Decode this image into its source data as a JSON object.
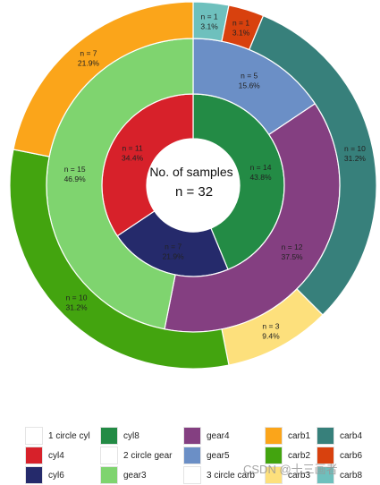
{
  "chart_data": {
    "type": "pie",
    "center_text": {
      "line1": "No. of samples",
      "line2": "n =  32"
    },
    "rings": [
      {
        "name": "circle cyl",
        "slices": [
          {
            "key": "cyl8",
            "label_n": "n = 14",
            "label_pct": "43.8%",
            "value": 14,
            "color": "#238b45"
          },
          {
            "key": "cyl6",
            "label_n": "n = 7",
            "label_pct": "21.9%",
            "value": 7,
            "color": "#252a6b"
          },
          {
            "key": "cyl4",
            "label_n": "n = 11",
            "label_pct": "34.4%",
            "value": 11,
            "color": "#d7212a"
          }
        ]
      },
      {
        "name": "circle gear",
        "slices": [
          {
            "key": "gear5",
            "label_n": "n = 5",
            "label_pct": "15.6%",
            "value": 5,
            "color": "#6b8fc6"
          },
          {
            "key": "gear4",
            "label_n": "n = 12",
            "label_pct": "37.5%",
            "value": 12,
            "color": "#843f81"
          },
          {
            "key": "gear3",
            "label_n": "n = 15",
            "label_pct": "46.9%",
            "value": 15,
            "color": "#7fd46f"
          }
        ]
      },
      {
        "name": "circle carb",
        "slices": [
          {
            "key": "carb8",
            "label_n": "n = 1",
            "label_pct": "3.1%",
            "value": 1,
            "color": "#6ec0bd"
          },
          {
            "key": "carb6",
            "label_n": "n = 1",
            "label_pct": "3.1%",
            "value": 1,
            "color": "#d8410e"
          },
          {
            "key": "carb4",
            "label_n": "n = 10",
            "label_pct": "31.2%",
            "value": 10,
            "color": "#37807b"
          },
          {
            "key": "carb3",
            "label_n": "n = 3",
            "label_pct": "9.4%",
            "value": 3,
            "color": "#fde07c"
          },
          {
            "key": "carb2",
            "label_n": "n = 10",
            "label_pct": "31.2%",
            "value": 10,
            "color": "#43a40f"
          },
          {
            "key": "carb1",
            "label_n": "n = 7",
            "label_pct": "21.9%",
            "value": 7,
            "color": "#fba51a"
          }
        ]
      }
    ],
    "legend": {
      "placement": "bottom",
      "items": [
        {
          "label": "1 circle cyl",
          "color": "#ffffff"
        },
        {
          "label": "cyl4",
          "color": "#d7212a"
        },
        {
          "label": "cyl6",
          "color": "#252a6b"
        },
        {
          "label": "cyl8",
          "color": "#238b45"
        },
        {
          "label": "2 circle gear",
          "color": "#ffffff"
        },
        {
          "label": "gear3",
          "color": "#7fd46f"
        },
        {
          "label": "gear4",
          "color": "#843f81"
        },
        {
          "label": "gear5",
          "color": "#6b8fc6"
        },
        {
          "label": "3 circle carb",
          "color": "#ffffff"
        },
        {
          "label": "carb1",
          "color": "#fba51a"
        },
        {
          "label": "carb2",
          "color": "#43a40f"
        },
        {
          "label": "carb3",
          "color": "#fde07c"
        },
        {
          "label": "carb4",
          "color": "#37807b"
        },
        {
          "label": "carb6",
          "color": "#d8410e"
        },
        {
          "label": "carb8",
          "color": "#6ec0bd"
        }
      ]
    }
  },
  "watermark": "CSDN @十三画者"
}
